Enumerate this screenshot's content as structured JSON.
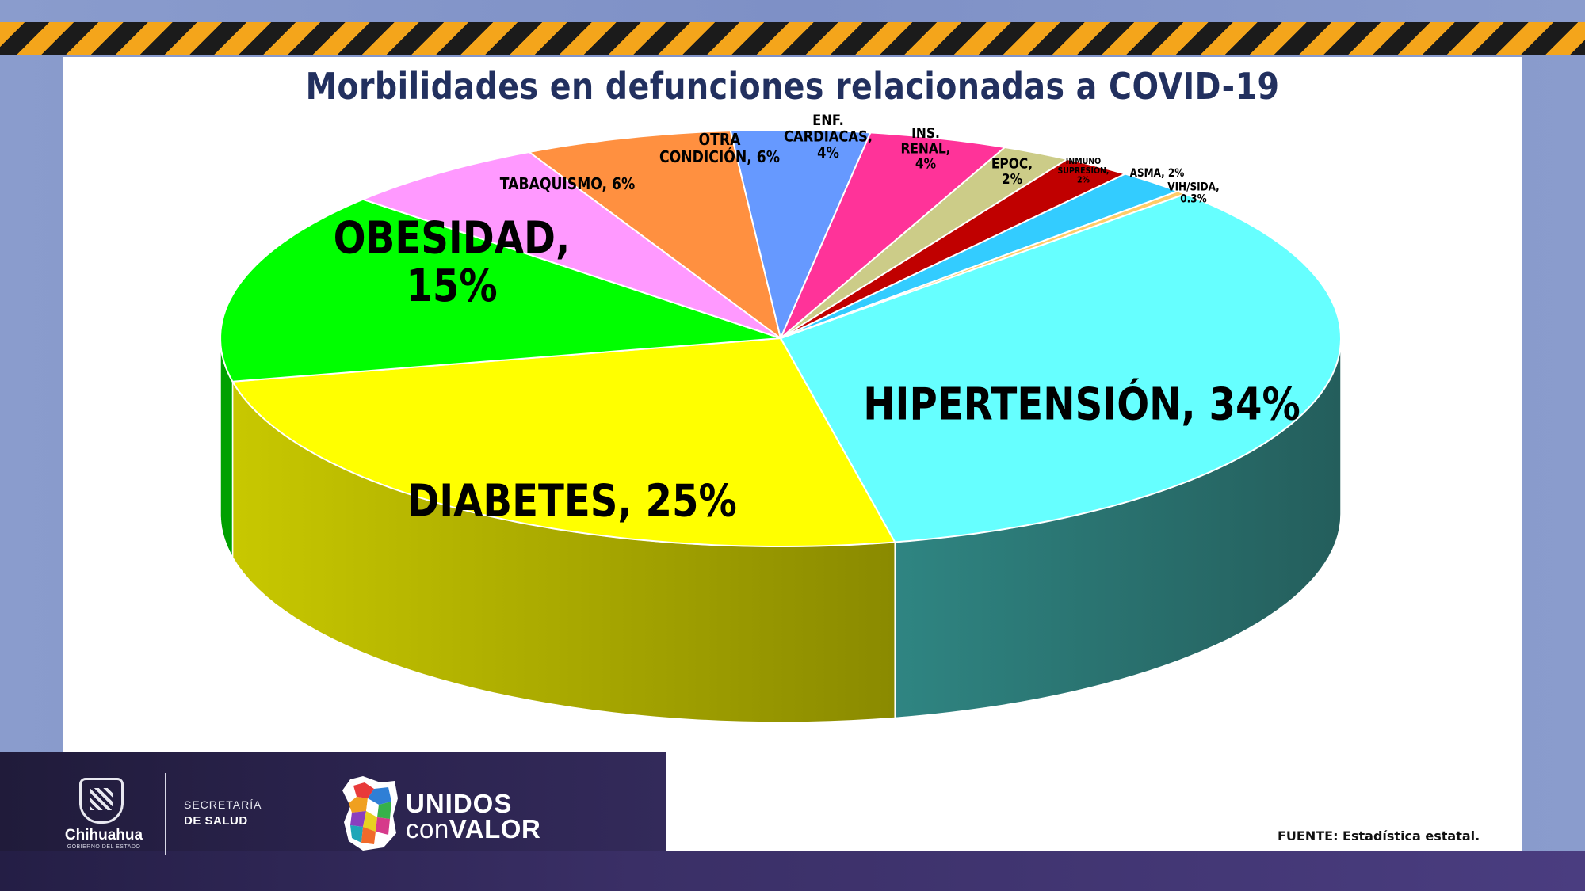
{
  "title": "Morbilidades en defunciones relacionadas a COVID-19",
  "source": "FUENTE: Estadística estatal.",
  "footer": {
    "state_name": "Chihuahua",
    "state_sub": "GOBIERNO DEL ESTADO",
    "dept_line1": "SECRETARÍA",
    "dept_line2": "DE SALUD",
    "slogan_line1": "UNIDOS",
    "slogan_con": "con",
    "slogan_valor": "VALOR"
  },
  "chart_data": {
    "type": "pie",
    "title": "Morbilidades en defunciones relacionadas a COVID-19",
    "style": "3d-exploded-none",
    "slices": [
      {
        "name": "HIPERTENSIÓN",
        "value": 34,
        "label": "HIPERTENSIÓN, 34%",
        "color": "#66ffff",
        "side_color": "#2e6f6d"
      },
      {
        "name": "DIABETES",
        "value": 25,
        "label": "DIABETES, 25%",
        "color": "#ffff00",
        "side_color": "#b8b800"
      },
      {
        "name": "OBESIDAD",
        "value": 15,
        "label": "OBESIDAD, 15%",
        "color": "#00ff00",
        "side_color": "#00a000"
      },
      {
        "name": "TABAQUISMO",
        "value": 6,
        "label": "TABAQUISMO, 6%",
        "color": "#ff99ff",
        "side_color": "#b06ab0"
      },
      {
        "name": "OTRA CONDICIÓN",
        "value": 6,
        "label": "OTRA CONDICIÓN, 6%",
        "color": "#ff9040",
        "side_color": "#b0602a"
      },
      {
        "name": "ENF. CARDIACAS",
        "value": 4,
        "label": "ENF. CARDIACAS, 4%",
        "color": "#6699ff",
        "side_color": "#4466aa"
      },
      {
        "name": "INS. RENAL",
        "value": 4,
        "label": "INS. RENAL, 4%",
        "color": "#ff3399",
        "side_color": "#aa2266"
      },
      {
        "name": "EPOC",
        "value": 2,
        "label": "EPOC, 2%",
        "color": "#cccc88",
        "side_color": "#88885a"
      },
      {
        "name": "INMUNOSUPRESIÓN",
        "value": 2,
        "label": "INMUNO SUPRESIÓN, 2%",
        "color": "#c00000",
        "side_color": "#800000"
      },
      {
        "name": "ASMA",
        "value": 2,
        "label": "ASMA, 2%",
        "color": "#33ccff",
        "side_color": "#2288aa"
      },
      {
        "name": "VIH/SIDA",
        "value": 0.3,
        "label": "VIH/SIDA, 0.3%",
        "color": "#ffcc66",
        "side_color": "#aa8844"
      }
    ]
  }
}
